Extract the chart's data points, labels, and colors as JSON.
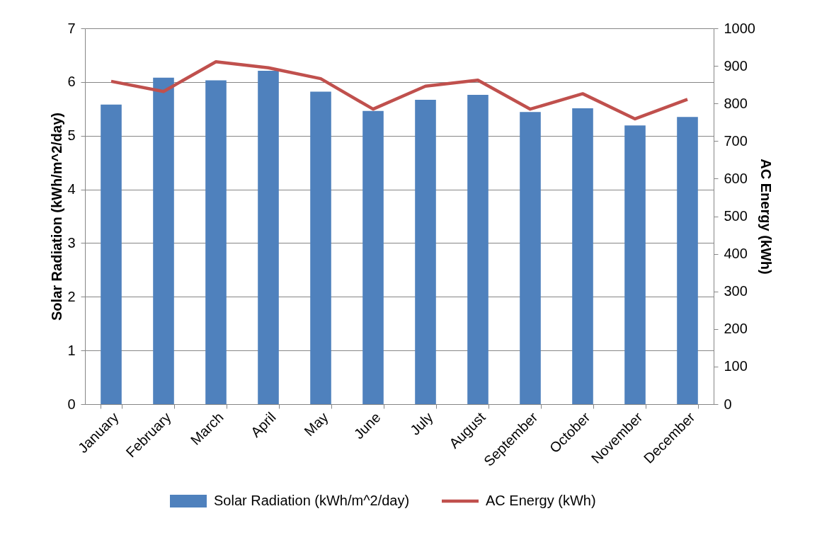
{
  "chart_data": {
    "type": "bar",
    "categories": [
      "January",
      "February",
      "March",
      "April",
      "May",
      "June",
      "July",
      "August",
      "September",
      "October",
      "November",
      "December"
    ],
    "ylabel": "Solar Radiation (kWh/m^2/day)",
    "y2label": "AC Energy (kWh)",
    "series": [
      {
        "name": "Solar Radiation (kWh/m^2/day)",
        "color": "#4f81bd",
        "values": [
          5.58,
          6.08,
          6.03,
          6.21,
          5.82,
          5.46,
          5.67,
          5.76,
          5.44,
          5.51,
          5.19,
          5.35
        ]
      },
      {
        "name": "AC Energy (kWh)",
        "type": "line",
        "axis": "y2",
        "color": "#c0504d",
        "values": [
          859,
          832,
          911,
          895,
          866,
          785,
          846,
          862,
          785,
          826,
          759,
          811
        ]
      }
    ],
    "ylim": [
      0,
      7
    ],
    "yticks": [
      0,
      1,
      2,
      3,
      4,
      5,
      6,
      7
    ],
    "y2lim": [
      0,
      1000
    ],
    "y2ticks": [
      0,
      100,
      200,
      300,
      400,
      500,
      600,
      700,
      800,
      900,
      1000
    ],
    "grid": "y",
    "legend": "bottom",
    "marker": "none",
    "line_style": "solid"
  }
}
